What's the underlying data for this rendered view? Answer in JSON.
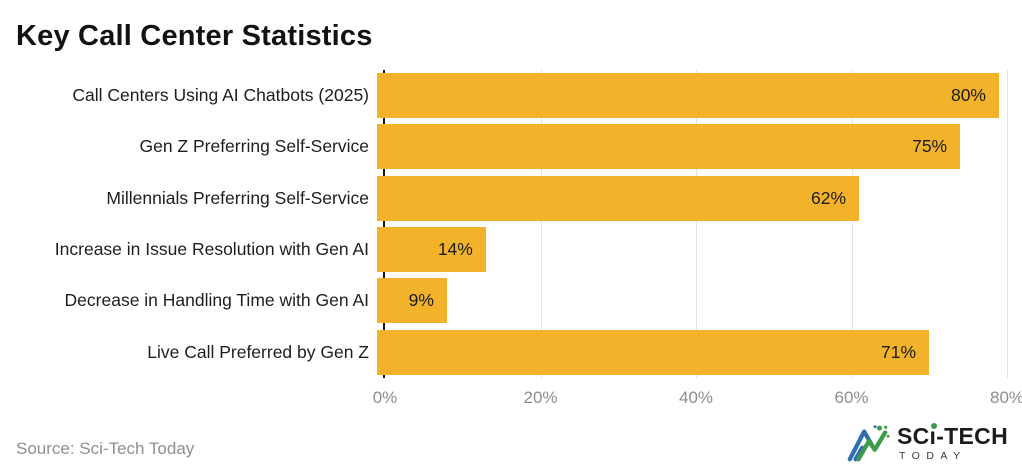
{
  "header": {
    "title": "Key Call Center Statistics"
  },
  "chart_data": {
    "type": "bar",
    "orientation": "horizontal",
    "title": "Key Call Center Statistics",
    "categories": [
      "Call Centers Using AI Chatbots (2025)",
      "Gen Z Preferring Self-Service",
      "Millennials Preferring Self-Service",
      "Increase in Issue Resolution with Gen AI",
      "Decrease in Handling Time with Gen AI",
      "Live Call Preferred by Gen Z"
    ],
    "values": [
      80,
      75,
      62,
      14,
      9,
      71
    ],
    "value_labels": [
      "80%",
      "75%",
      "62%",
      "14%",
      "9%",
      "71%"
    ],
    "xlim": [
      0,
      80
    ],
    "xticks": [
      "0%",
      "20%",
      "40%",
      "60%",
      "80%"
    ],
    "xlabel": "",
    "ylabel": "",
    "grid": "vertical-only",
    "legend": "none",
    "bar_color": "#f2b32b",
    "axis_color": "#161616",
    "gridline_color": "#e3e3e3",
    "tick_color": "#8e8e8e"
  },
  "footer": {
    "source": "Source: Sci-Tech Today"
  },
  "logo": {
    "part1": "SC",
    "i_char": "ı",
    "part2": "-TECH",
    "subtitle": "TODAY",
    "accent_green": "#3b9c4a",
    "accent_blue": "#2f6fb2"
  }
}
